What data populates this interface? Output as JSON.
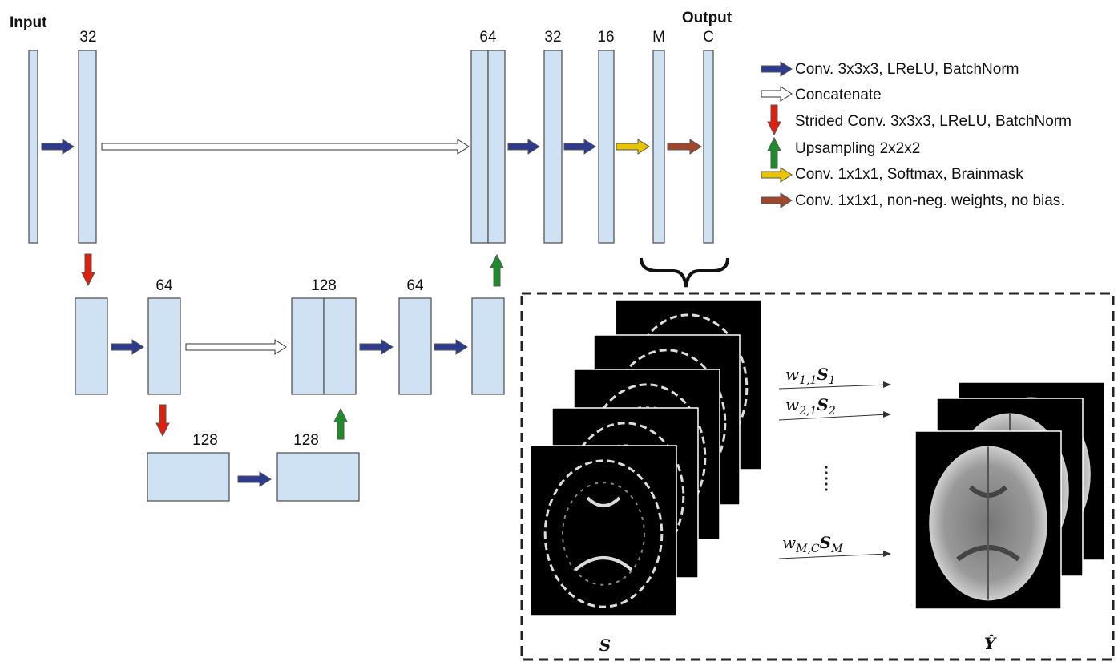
{
  "header": {
    "input": "Input",
    "output": "Output"
  },
  "blocks": {
    "top": [
      "32",
      "64",
      "32",
      "16",
      "M",
      "C"
    ],
    "middle": [
      "64",
      "128",
      "64"
    ],
    "bottom": [
      "128",
      "128"
    ]
  },
  "legend": [
    "Conv. 3x3x3, LReLU, BatchNorm",
    "Concatenate",
    "Strided Conv. 3x3x3, LReLU, BatchNorm",
    "Upsampling 2x2x2",
    "Conv. 1x1x1, Softmax, Brainmask",
    "Conv. 1x1x1, non-neg. weights, no bias."
  ],
  "panel": {
    "weights": [
      {
        "w": "w",
        "wsub": "1,1",
        "s": "S",
        "ssub": "1"
      },
      {
        "w": "w",
        "wsub": "2,1",
        "s": "S",
        "ssub": "2"
      },
      {
        "w": "w",
        "wsub": "M,C",
        "s": "S",
        "ssub": "M"
      }
    ],
    "input_label": "S",
    "output_label": "Ŷ"
  }
}
